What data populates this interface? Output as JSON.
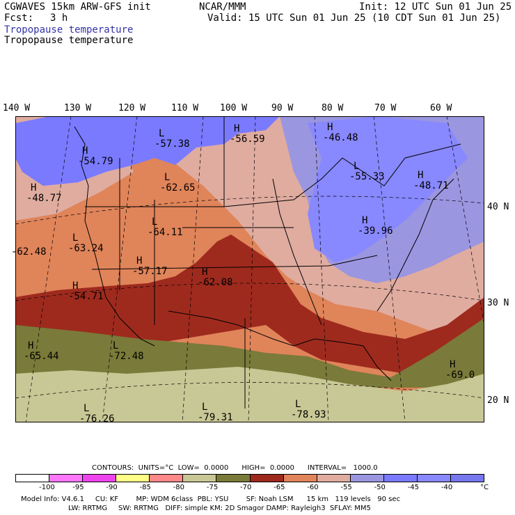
{
  "header": {
    "model": "CGWAVES 15km ARW-GFS init",
    "fcst_label": "Fcst:",
    "fcst_value": "3 h",
    "center": "NCAR/MMM",
    "init": "Init: 12 UTC Sun 01 Jun 25",
    "valid": "Valid: 15 UTC Sun 01 Jun 25 (10 CDT Sun 01 Jun 25)",
    "field_title_1": "Tropopause temperature",
    "field_title_2": "Tropopause temperature"
  },
  "longitude_labels": [
    "140 W",
    "130 W",
    "120 W",
    "110 W",
    "100 W",
    "90 W",
    "80 W",
    "70 W",
    "60 W"
  ],
  "latitude_labels": [
    "40 N",
    "30 N",
    "20 N"
  ],
  "extrema": [
    {
      "type": "L",
      "value": "-57.38"
    },
    {
      "type": "H",
      "value": "-56.59"
    },
    {
      "type": "H",
      "value": "-46.48"
    },
    {
      "type": "H",
      "value": "-54.79"
    },
    {
      "type": "L",
      "value": "-55.33"
    },
    {
      "type": "H",
      "value": "-48.71"
    },
    {
      "type": "H",
      "value": "-48.77"
    },
    {
      "type": "L",
      "value": "-62.65"
    },
    {
      "type": "L",
      "value": "-64.11"
    },
    {
      "type": "L",
      "value": "-63.24"
    },
    {
      "type": "H",
      "value": "-39.96"
    },
    {
      "type": "",
      "value": "-62.48"
    },
    {
      "type": "H",
      "value": "-57.17"
    },
    {
      "type": "H",
      "value": "-62.08"
    },
    {
      "type": "H",
      "value": "-54.71"
    },
    {
      "type": "H",
      "value": "-65.44"
    },
    {
      "type": "L",
      "value": "-72.48"
    },
    {
      "type": "H",
      "value": "-69.0"
    },
    {
      "type": "L",
      "value": "-76.26"
    },
    {
      "type": "L",
      "value": "-79.31"
    },
    {
      "type": "L",
      "value": "-78.93"
    }
  ],
  "contours_info": "CONTOURS:  UNITS=°C  LOW=  0.0000      HIGH=  0.0000      INTERVAL=   1000.0",
  "colorbar": {
    "colors": [
      "#ffffff",
      "#ff77ff",
      "#ee44ee",
      "#ffff88",
      "#ff8888",
      "#c8c896",
      "#7a7a3a",
      "#9e2a1e",
      "#e0845a",
      "#e0aca0",
      "#9a96e0",
      "#7a7aff",
      "#8888ff",
      "#7777ee"
    ],
    "labels": [
      "-100",
      "-95",
      "-90",
      "-85",
      "-80",
      "-75",
      "-70",
      "-65",
      "-60",
      "-55",
      "-50",
      "-45",
      "-40"
    ],
    "unit": "°C"
  },
  "footer": {
    "line1": "Model Info: V4.6.1     CU: KF        MP: WDM 6class  PBL: YSU        SF: Noah LSM      15 km   119 levels   90 sec",
    "line2": "LW: RRTMG     SW: RRTMG   DIFF: simple KM: 2D Smagor DAMP: Rayleigh3  SFLAY: MM5"
  }
}
